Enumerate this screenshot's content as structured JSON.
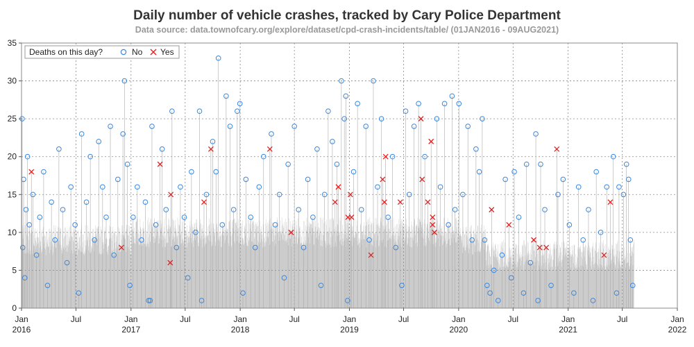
{
  "chart_data": {
    "type": "scatter",
    "title": "Daily number of vehicle crashes, tracked by Cary Police Department",
    "subtitle": "Data source: data.townofcary.org/explore/dataset/cpd-crash-incidents/table/ (01JAN2016 - 09AUG2021)",
    "xlabel": "",
    "ylabel": "",
    "ylim": [
      0,
      35
    ],
    "xlim": [
      "2016-01-01",
      "2022-01-01"
    ],
    "y_ticks": [
      0,
      5,
      10,
      15,
      20,
      25,
      30,
      35
    ],
    "x_ticks": [
      {
        "date": "2016-01-01",
        "month": "Jan",
        "year": "2016"
      },
      {
        "date": "2016-07-01",
        "month": "Jul",
        "year": ""
      },
      {
        "date": "2017-01-01",
        "month": "Jan",
        "year": "2017"
      },
      {
        "date": "2017-07-01",
        "month": "Jul",
        "year": ""
      },
      {
        "date": "2018-01-01",
        "month": "Jan",
        "year": "2018"
      },
      {
        "date": "2018-07-01",
        "month": "Jul",
        "year": ""
      },
      {
        "date": "2019-01-01",
        "month": "Jan",
        "year": "2019"
      },
      {
        "date": "2019-07-01",
        "month": "Jul",
        "year": ""
      },
      {
        "date": "2020-01-01",
        "month": "Jan",
        "year": "2020"
      },
      {
        "date": "2020-07-01",
        "month": "Jul",
        "year": ""
      },
      {
        "date": "2021-01-01",
        "month": "Jan",
        "year": "2021"
      },
      {
        "date": "2021-07-01",
        "month": "Jul",
        "year": ""
      },
      {
        "date": "2022-01-01",
        "month": "Jan",
        "year": "2022"
      }
    ],
    "grid": true,
    "area_fill_color": "#cccccc",
    "legend": {
      "title": "Deaths on this day?",
      "placement": "top-left",
      "entries": [
        {
          "label": "No",
          "marker": "circle",
          "color": "#3a87dd"
        },
        {
          "label": "Yes",
          "marker": "x",
          "color": "#e02020"
        }
      ]
    },
    "series": [
      {
        "name": "Yes",
        "marker": "x",
        "color": "#e02020",
        "points": [
          {
            "x": "2016-02-03",
            "y": 18
          },
          {
            "x": "2016-11-30",
            "y": 8
          },
          {
            "x": "2017-04-08",
            "y": 19
          },
          {
            "x": "2017-05-12",
            "y": 6
          },
          {
            "x": "2017-05-14",
            "y": 15
          },
          {
            "x": "2017-09-02",
            "y": 14
          },
          {
            "x": "2017-09-25",
            "y": 21
          },
          {
            "x": "2018-04-10",
            "y": 21
          },
          {
            "x": "2018-06-20",
            "y": 10
          },
          {
            "x": "2018-11-14",
            "y": 14
          },
          {
            "x": "2018-11-25",
            "y": 16
          },
          {
            "x": "2018-12-27",
            "y": 12
          },
          {
            "x": "2019-01-04",
            "y": 15
          },
          {
            "x": "2019-01-08",
            "y": 12
          },
          {
            "x": "2019-03-14",
            "y": 7
          },
          {
            "x": "2019-04-22",
            "y": 17
          },
          {
            "x": "2019-04-28",
            "y": 14
          },
          {
            "x": "2019-05-02",
            "y": 20
          },
          {
            "x": "2019-06-20",
            "y": 14
          },
          {
            "x": "2019-08-28",
            "y": 25
          },
          {
            "x": "2019-09-01",
            "y": 17
          },
          {
            "x": "2019-09-20",
            "y": 14
          },
          {
            "x": "2019-10-01",
            "y": 22
          },
          {
            "x": "2019-10-06",
            "y": 11
          },
          {
            "x": "2019-10-06",
            "y": 12
          },
          {
            "x": "2019-10-12",
            "y": 10
          },
          {
            "x": "2020-04-20",
            "y": 13
          },
          {
            "x": "2020-06-17",
            "y": 11
          },
          {
            "x": "2020-09-08",
            "y": 9
          },
          {
            "x": "2020-09-28",
            "y": 8
          },
          {
            "x": "2020-10-20",
            "y": 8
          },
          {
            "x": "2020-11-24",
            "y": 21
          },
          {
            "x": "2021-05-01",
            "y": 7
          },
          {
            "x": "2021-05-22",
            "y": 14
          }
        ]
      },
      {
        "name": "No",
        "marker": "circle",
        "color": "#3a87dd",
        "points": [
          {
            "x": "2016-01-03",
            "y": 25
          },
          {
            "x": "2016-01-05",
            "y": 8
          },
          {
            "x": "2016-01-08",
            "y": 17
          },
          {
            "x": "2016-01-12",
            "y": 4
          },
          {
            "x": "2016-01-16",
            "y": 13
          },
          {
            "x": "2016-01-21",
            "y": 20
          },
          {
            "x": "2016-01-27",
            "y": 11
          },
          {
            "x": "2016-02-08",
            "y": 15
          },
          {
            "x": "2016-02-20",
            "y": 7
          },
          {
            "x": "2016-03-02",
            "y": 12
          },
          {
            "x": "2016-03-15",
            "y": 18
          },
          {
            "x": "2016-03-28",
            "y": 3
          },
          {
            "x": "2016-04-10",
            "y": 14
          },
          {
            "x": "2016-04-22",
            "y": 9
          },
          {
            "x": "2016-05-05",
            "y": 21
          },
          {
            "x": "2016-05-18",
            "y": 13
          },
          {
            "x": "2016-06-01",
            "y": 6
          },
          {
            "x": "2016-06-14",
            "y": 16
          },
          {
            "x": "2016-06-28",
            "y": 11
          },
          {
            "x": "2016-07-10",
            "y": 2
          },
          {
            "x": "2016-07-20",
            "y": 23
          },
          {
            "x": "2016-08-05",
            "y": 14
          },
          {
            "x": "2016-08-18",
            "y": 20
          },
          {
            "x": "2016-09-01",
            "y": 9
          },
          {
            "x": "2016-09-15",
            "y": 22
          },
          {
            "x": "2016-09-28",
            "y": 16
          },
          {
            "x": "2016-10-10",
            "y": 12
          },
          {
            "x": "2016-10-24",
            "y": 24
          },
          {
            "x": "2016-11-05",
            "y": 7
          },
          {
            "x": "2016-11-18",
            "y": 17
          },
          {
            "x": "2016-12-05",
            "y": 23
          },
          {
            "x": "2016-12-10",
            "y": 30
          },
          {
            "x": "2016-12-20",
            "y": 19
          },
          {
            "x": "2016-12-28",
            "y": 3
          },
          {
            "x": "2017-01-08",
            "y": 12
          },
          {
            "x": "2017-01-22",
            "y": 16
          },
          {
            "x": "2017-02-05",
            "y": 9
          },
          {
            "x": "2017-02-18",
            "y": 14
          },
          {
            "x": "2017-03-01",
            "y": 1
          },
          {
            "x": "2017-03-06",
            "y": 1
          },
          {
            "x": "2017-03-12",
            "y": 24
          },
          {
            "x": "2017-03-25",
            "y": 11
          },
          {
            "x": "2017-04-15",
            "y": 21
          },
          {
            "x": "2017-04-28",
            "y": 13
          },
          {
            "x": "2017-05-18",
            "y": 26
          },
          {
            "x": "2017-06-02",
            "y": 8
          },
          {
            "x": "2017-06-15",
            "y": 16
          },
          {
            "x": "2017-06-28",
            "y": 12
          },
          {
            "x": "2017-07-10",
            "y": 4
          },
          {
            "x": "2017-07-22",
            "y": 18
          },
          {
            "x": "2017-08-05",
            "y": 10
          },
          {
            "x": "2017-08-18",
            "y": 26
          },
          {
            "x": "2017-08-25",
            "y": 1
          },
          {
            "x": "2017-09-10",
            "y": 15
          },
          {
            "x": "2017-10-01",
            "y": 22
          },
          {
            "x": "2017-10-12",
            "y": 18
          },
          {
            "x": "2017-10-20",
            "y": 33
          },
          {
            "x": "2017-11-02",
            "y": 11
          },
          {
            "x": "2017-11-15",
            "y": 28
          },
          {
            "x": "2017-11-28",
            "y": 24
          },
          {
            "x": "2017-12-10",
            "y": 13
          },
          {
            "x": "2017-12-22",
            "y": 26
          },
          {
            "x": "2017-12-31",
            "y": 27
          },
          {
            "x": "2018-01-10",
            "y": 2
          },
          {
            "x": "2018-01-20",
            "y": 17
          },
          {
            "x": "2018-02-05",
            "y": 12
          },
          {
            "x": "2018-02-20",
            "y": 8
          },
          {
            "x": "2018-03-05",
            "y": 16
          },
          {
            "x": "2018-03-20",
            "y": 20
          },
          {
            "x": "2018-04-15",
            "y": 23
          },
          {
            "x": "2018-04-28",
            "y": 11
          },
          {
            "x": "2018-05-12",
            "y": 15
          },
          {
            "x": "2018-05-28",
            "y": 4
          },
          {
            "x": "2018-06-10",
            "y": 19
          },
          {
            "x": "2018-07-01",
            "y": 24
          },
          {
            "x": "2018-07-15",
            "y": 13
          },
          {
            "x": "2018-08-01",
            "y": 8
          },
          {
            "x": "2018-08-15",
            "y": 17
          },
          {
            "x": "2018-09-01",
            "y": 12
          },
          {
            "x": "2018-09-15",
            "y": 21
          },
          {
            "x": "2018-09-28",
            "y": 3
          },
          {
            "x": "2018-10-10",
            "y": 15
          },
          {
            "x": "2018-10-22",
            "y": 26
          },
          {
            "x": "2018-11-05",
            "y": 22
          },
          {
            "x": "2018-11-20",
            "y": 19
          },
          {
            "x": "2018-12-05",
            "y": 30
          },
          {
            "x": "2018-12-15",
            "y": 25
          },
          {
            "x": "2018-12-20",
            "y": 28
          },
          {
            "x": "2018-12-26",
            "y": 1
          },
          {
            "x": "2019-01-15",
            "y": 18
          },
          {
            "x": "2019-01-28",
            "y": 27
          },
          {
            "x": "2019-02-10",
            "y": 13
          },
          {
            "x": "2019-02-25",
            "y": 24
          },
          {
            "x": "2019-03-08",
            "y": 9
          },
          {
            "x": "2019-03-22",
            "y": 30
          },
          {
            "x": "2019-04-05",
            "y": 16
          },
          {
            "x": "2019-04-18",
            "y": 25
          },
          {
            "x": "2019-05-10",
            "y": 12
          },
          {
            "x": "2019-05-25",
            "y": 20
          },
          {
            "x": "2019-06-05",
            "y": 8
          },
          {
            "x": "2019-06-25",
            "y": 3
          },
          {
            "x": "2019-07-08",
            "y": 26
          },
          {
            "x": "2019-07-20",
            "y": 15
          },
          {
            "x": "2019-08-05",
            "y": 24
          },
          {
            "x": "2019-08-20",
            "y": 27
          },
          {
            "x": "2019-09-10",
            "y": 20
          },
          {
            "x": "2019-10-20",
            "y": 25
          },
          {
            "x": "2019-11-01",
            "y": 16
          },
          {
            "x": "2019-11-15",
            "y": 27
          },
          {
            "x": "2019-11-28",
            "y": 11
          },
          {
            "x": "2019-12-10",
            "y": 28
          },
          {
            "x": "2019-12-20",
            "y": 13
          },
          {
            "x": "2020-01-02",
            "y": 27
          },
          {
            "x": "2020-01-15",
            "y": 15
          },
          {
            "x": "2020-02-01",
            "y": 24
          },
          {
            "x": "2020-02-15",
            "y": 9
          },
          {
            "x": "2020-02-28",
            "y": 21
          },
          {
            "x": "2020-03-10",
            "y": 18
          },
          {
            "x": "2020-03-20",
            "y": 25
          },
          {
            "x": "2020-03-28",
            "y": 9
          },
          {
            "x": "2020-04-05",
            "y": 3
          },
          {
            "x": "2020-04-15",
            "y": 2
          },
          {
            "x": "2020-04-28",
            "y": 5
          },
          {
            "x": "2020-05-12",
            "y": 1
          },
          {
            "x": "2020-05-25",
            "y": 7
          },
          {
            "x": "2020-06-05",
            "y": 17
          },
          {
            "x": "2020-06-25",
            "y": 4
          },
          {
            "x": "2020-07-05",
            "y": 18
          },
          {
            "x": "2020-07-20",
            "y": 12
          },
          {
            "x": "2020-08-05",
            "y": 2
          },
          {
            "x": "2020-08-15",
            "y": 19
          },
          {
            "x": "2020-08-28",
            "y": 6
          },
          {
            "x": "2020-09-15",
            "y": 23
          },
          {
            "x": "2020-09-22",
            "y": 1
          },
          {
            "x": "2020-10-01",
            "y": 19
          },
          {
            "x": "2020-10-15",
            "y": 13
          },
          {
            "x": "2020-11-05",
            "y": 3
          },
          {
            "x": "2020-11-28",
            "y": 15
          },
          {
            "x": "2020-12-15",
            "y": 17
          },
          {
            "x": "2021-01-05",
            "y": 11
          },
          {
            "x": "2021-01-20",
            "y": 2
          },
          {
            "x": "2021-02-05",
            "y": 16
          },
          {
            "x": "2021-02-20",
            "y": 9
          },
          {
            "x": "2021-03-10",
            "y": 13
          },
          {
            "x": "2021-03-25",
            "y": 1
          },
          {
            "x": "2021-04-05",
            "y": 18
          },
          {
            "x": "2021-04-20",
            "y": 10
          },
          {
            "x": "2021-05-10",
            "y": 16
          },
          {
            "x": "2021-06-01",
            "y": 20
          },
          {
            "x": "2021-06-12",
            "y": 2
          },
          {
            "x": "2021-06-20",
            "y": 16
          },
          {
            "x": "2021-07-05",
            "y": 15
          },
          {
            "x": "2021-07-15",
            "y": 19
          },
          {
            "x": "2021-07-22",
            "y": 17
          },
          {
            "x": "2021-07-28",
            "y": 9
          },
          {
            "x": "2021-08-05",
            "y": 3
          }
        ]
      }
    ]
  }
}
